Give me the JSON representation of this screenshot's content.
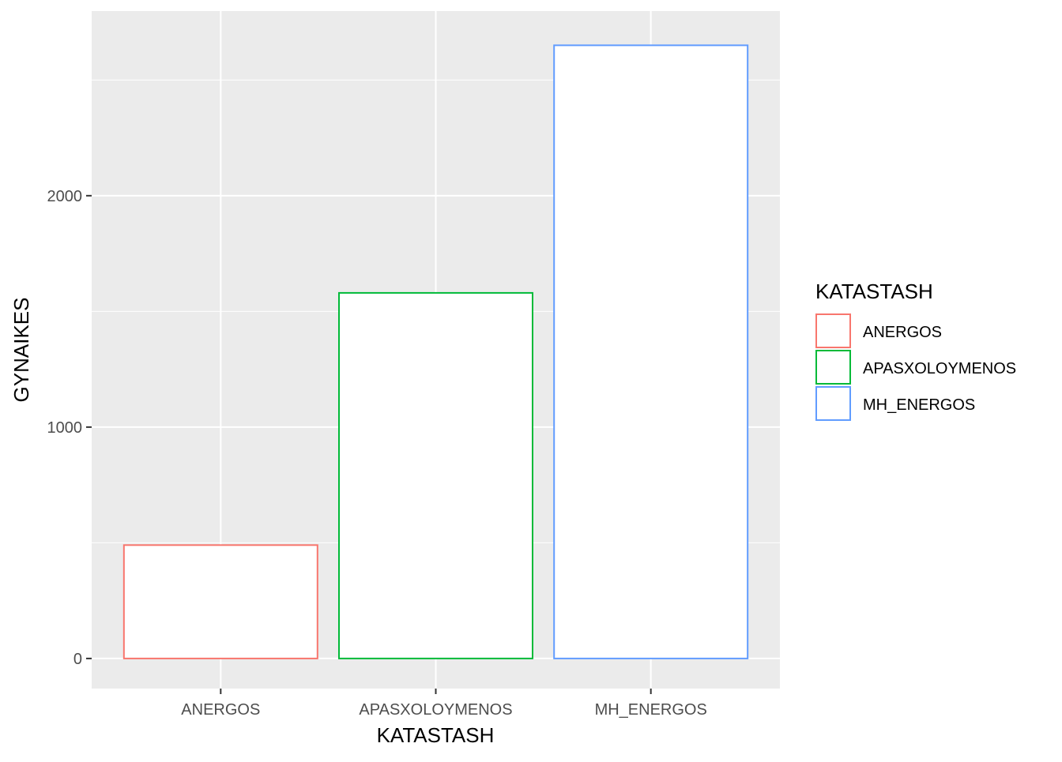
{
  "chart_data": {
    "type": "bar",
    "categories": [
      "ANERGOS",
      "APASXOLOYMENOS",
      "MH_ENERGOS"
    ],
    "values": [
      490,
      1580,
      2650
    ],
    "colors": [
      "#F8766D",
      "#00BA38",
      "#619CFF"
    ],
    "xlabel": "KATASTASH",
    "ylabel": "GYNAIKES",
    "ylim": [
      -130,
      2798
    ],
    "yticks": [
      0,
      1000,
      2000
    ],
    "y_tick_labels": [
      "0",
      "1000",
      "2000"
    ],
    "grid": true,
    "bar_style": "outlined",
    "panel_background": "#EBEBEB",
    "legend": {
      "title": "KATASTASH",
      "placement": "right",
      "entries": [
        "ANERGOS",
        "APASXOLOYMENOS",
        "MH_ENERGOS"
      ]
    }
  }
}
